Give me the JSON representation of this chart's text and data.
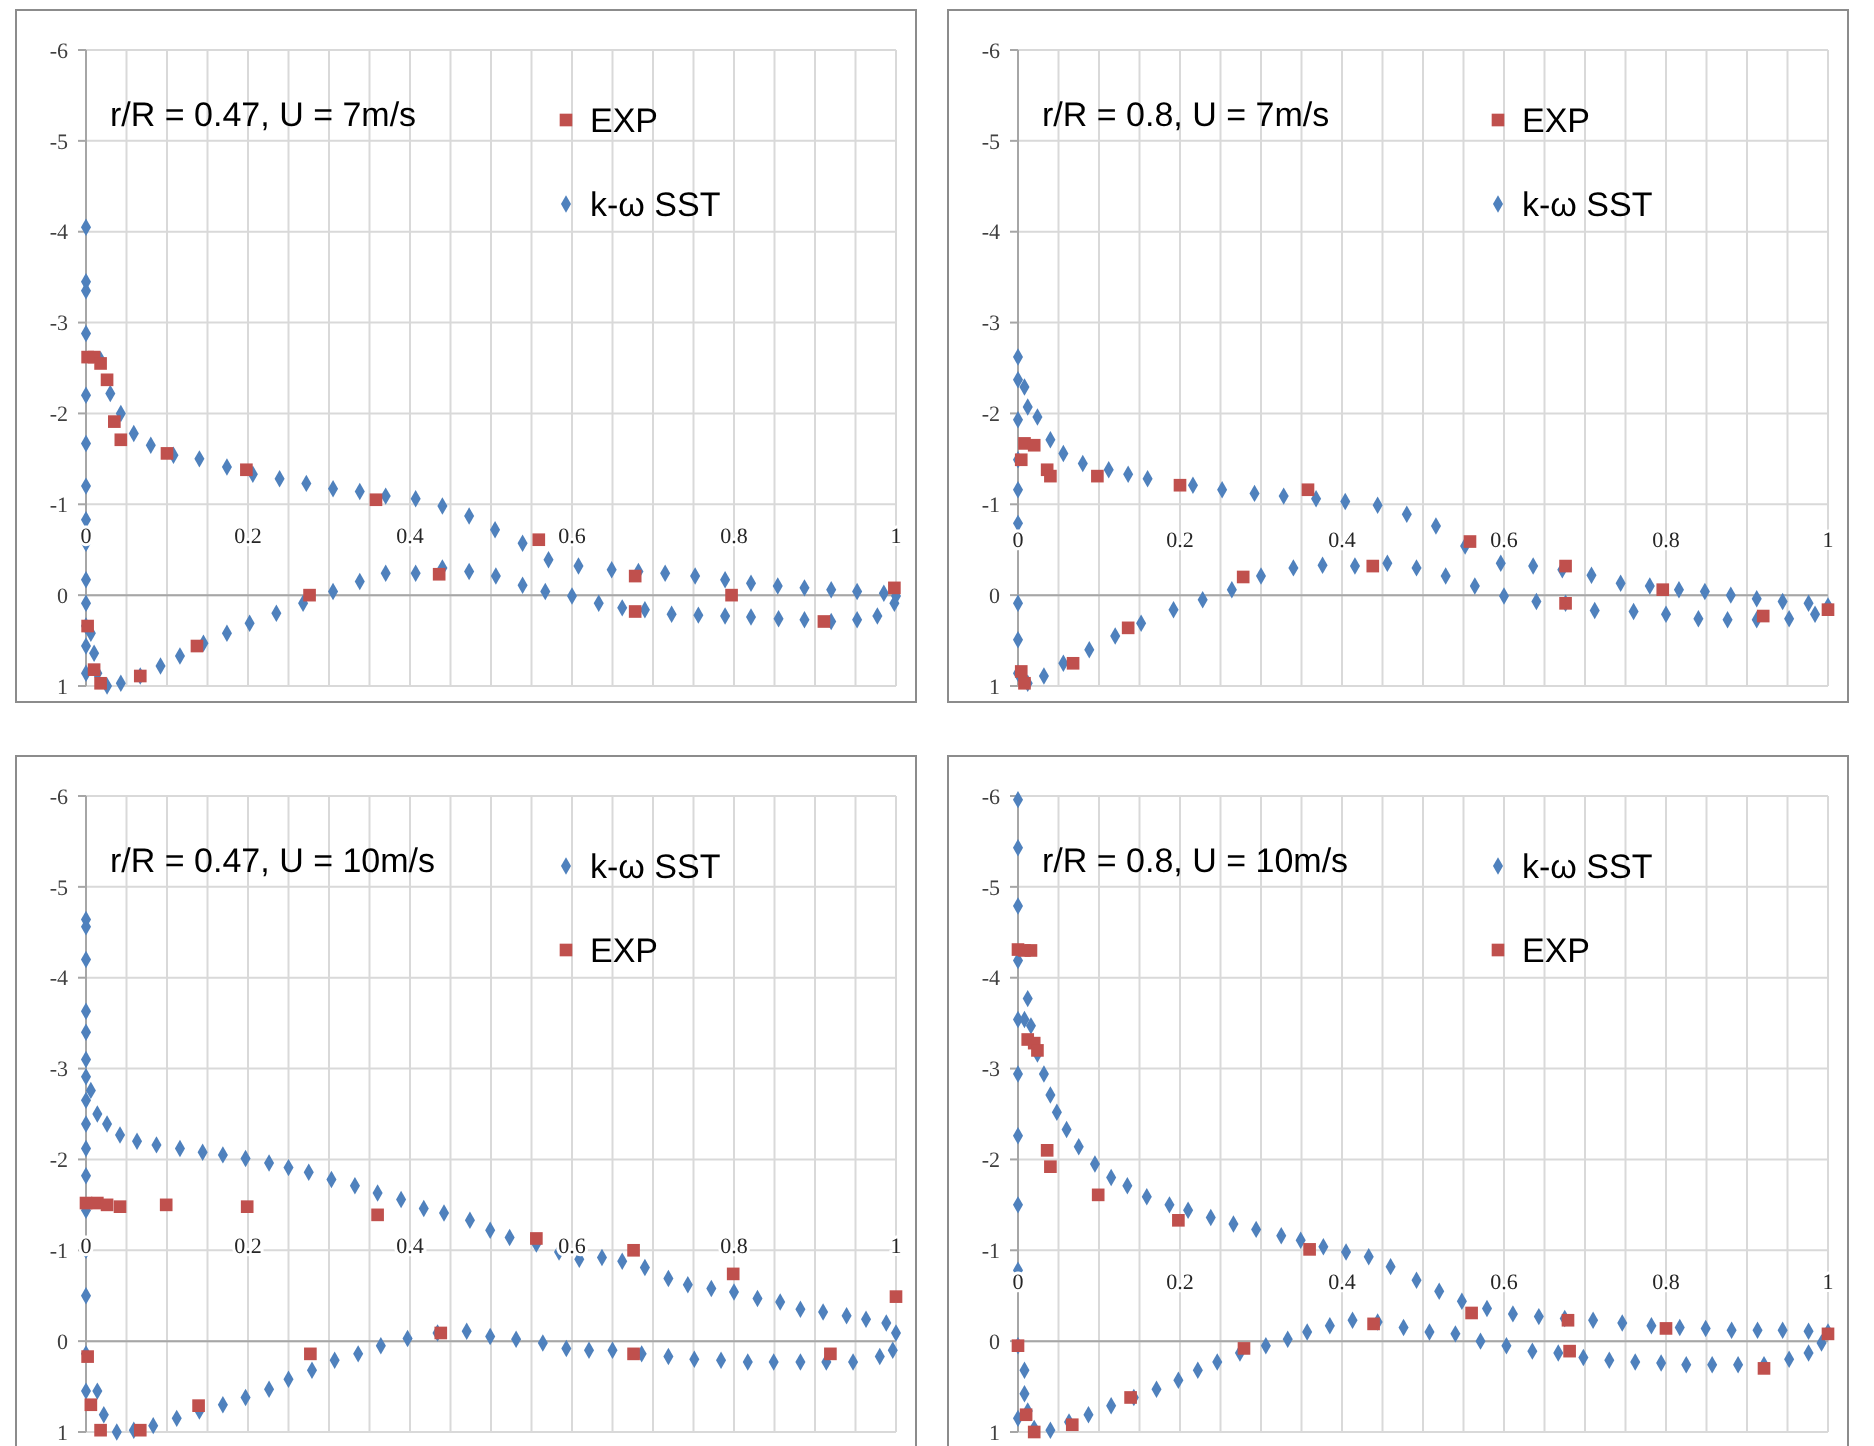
{
  "chart_data": [
    {
      "type": "scatter",
      "title": "r/R = 0.47, U = 7m/s",
      "xlim": [
        0,
        1
      ],
      "ylim": [
        1,
        -6
      ],
      "xticks": [
        0,
        {
          "value": 0.05,
          "label": null
        },
        {
          "value": 0.1,
          "label": null
        },
        {
          "value": 0.15,
          "label": null
        },
        0.2,
        {
          "value": 0.25,
          "label": null
        },
        {
          "value": 0.3,
          "label": null
        },
        {
          "value": 0.35,
          "label": null
        },
        0.4,
        {
          "value": 0.45,
          "label": null
        },
        {
          "value": 0.5,
          "label": null
        },
        {
          "value": 0.55,
          "label": null
        },
        0.6,
        {
          "value": 0.65,
          "label": null
        },
        {
          "value": 0.7,
          "label": null
        },
        {
          "value": 0.75,
          "label": null
        },
        0.8,
        {
          "value": 0.85,
          "label": null
        },
        {
          "value": 0.9,
          "label": null
        },
        {
          "value": 0.95,
          "label": null
        },
        1
      ],
      "yticks": [
        1,
        0,
        -1,
        -2,
        -3,
        -4,
        -5,
        -6
      ],
      "grid": true,
      "legend": "top right",
      "series": [
        {
          "name": "EXP",
          "color": "#c0504d",
          "marker": "square",
          "x": [
            0.002,
            0.01,
            0.018,
            0.026,
            0.035,
            0.043,
            0.1,
            0.198,
            0.358,
            0.559,
            0.678,
            0.797,
            0.998,
            0.911,
            0.678,
            0.436,
            0.276,
            0.137,
            0.067,
            0.018,
            0.01,
            0.002
          ],
          "values": [
            -2.62,
            -2.62,
            -2.55,
            -2.37,
            -1.91,
            -1.71,
            -1.56,
            -1.38,
            -1.05,
            -0.61,
            -0.21,
            0,
            -0.08,
            0.29,
            0.18,
            -0.23,
            0,
            0.56,
            0.89,
            0.97,
            0.82,
            0.34
          ]
        },
        {
          "name": "k-ω SST",
          "color": "#4f81bd",
          "marker": "diamond",
          "x": [
            0,
            0,
            0,
            0,
            0,
            0,
            0,
            0,
            0,
            0,
            0,
            0,
            0,
            0,
            0.018,
            0.03,
            0.043,
            0.059,
            0.08,
            0.108,
            0.14,
            0.174,
            0.206,
            0.239,
            0.272,
            0.305,
            0.338,
            0.37,
            0.407,
            0.44,
            0.473,
            0.505,
            0.539,
            0.571,
            0.608,
            0.649,
            0.682,
            0.715,
            0.752,
            0.789,
            0.821,
            0.854,
            0.887,
            0.92,
            0.952,
            0.985,
            1,
            0.998,
            0.977,
            0.952,
            0.92,
            0.887,
            0.855,
            0.821,
            0.789,
            0.756,
            0.723,
            0.69,
            0.662,
            0.633,
            0.6,
            0.567,
            0.539,
            0.506,
            0.473,
            0.44,
            0.407,
            0.37,
            0.338,
            0.305,
            0.268,
            0.235,
            0.202,
            0.174,
            0.145,
            0.116,
            0.092,
            0.067,
            0.043,
            0.026,
            0.014,
            0.01,
            0.006
          ],
          "values": [
            -4.05,
            -3.45,
            -3.35,
            -2.88,
            -2.2,
            -1.67,
            -1.2,
            -0.83,
            -0.57,
            -0.17,
            0.09,
            0.34,
            0.56,
            0.86,
            -2.59,
            -2.22,
            -2,
            -1.78,
            -1.65,
            -1.54,
            -1.5,
            -1.41,
            -1.33,
            -1.28,
            -1.23,
            -1.17,
            -1.14,
            -1.09,
            -1.06,
            -0.98,
            -0.87,
            -0.72,
            -0.57,
            -0.39,
            -0.32,
            -0.28,
            -0.26,
            -0.24,
            -0.21,
            -0.17,
            -0.13,
            -0.1,
            -0.08,
            -0.06,
            -0.04,
            -0.02,
            0.01,
            0.09,
            0.23,
            0.27,
            0.29,
            0.27,
            0.26,
            0.24,
            0.23,
            0.22,
            0.21,
            0.16,
            0.14,
            0.09,
            0.01,
            -0.04,
            -0.11,
            -0.21,
            -0.26,
            -0.3,
            -0.24,
            -0.24,
            -0.15,
            -0.04,
            0.09,
            0.2,
            0.31,
            0.42,
            0.53,
            0.67,
            0.78,
            0.89,
            0.97,
            1,
            0.86,
            0.64,
            0.42
          ]
        }
      ]
    },
    {
      "type": "scatter",
      "title": "r/R = 0.8, U = 7m/s",
      "xlim": [
        0,
        1
      ],
      "ylim": [
        1,
        -6
      ],
      "xticks": [
        0,
        {
          "value": 0.05,
          "label": null
        },
        {
          "value": 0.1,
          "label": null
        },
        {
          "value": 0.15,
          "label": null
        },
        0.2,
        {
          "value": 0.25,
          "label": null
        },
        {
          "value": 0.3,
          "label": null
        },
        {
          "value": 0.35,
          "label": null
        },
        0.4,
        {
          "value": 0.45,
          "label": null
        },
        {
          "value": 0.5,
          "label": null
        },
        {
          "value": 0.55,
          "label": null
        },
        0.6,
        {
          "value": 0.65,
          "label": null
        },
        {
          "value": 0.7,
          "label": null
        },
        {
          "value": 0.75,
          "label": null
        },
        0.8,
        {
          "value": 0.85,
          "label": null
        },
        {
          "value": 0.9,
          "label": null
        },
        {
          "value": 0.95,
          "label": null
        },
        1
      ],
      "yticks": [
        1,
        0,
        -1,
        -2,
        -3,
        -4,
        -5,
        -6
      ],
      "grid": true,
      "legend": "top right",
      "series": [
        {
          "name": "EXP",
          "color": "#c0504d",
          "marker": "square",
          "x": [
            0.004,
            0.008,
            0.02,
            0.036,
            0.04,
            0.098,
            0.2,
            0.358,
            0.558,
            0.676,
            0.796,
            1,
            0.92,
            0.676,
            0.438,
            0.278,
            0.136,
            0.068,
            0.008,
            0.004
          ],
          "values": [
            -1.49,
            -1.67,
            -1.65,
            -1.38,
            -1.31,
            -1.31,
            -1.21,
            -1.16,
            -0.59,
            -0.32,
            -0.06,
            0.16,
            0.23,
            0.09,
            -0.32,
            -0.2,
            0.36,
            0.75,
            0.97,
            0.84
          ]
        },
        {
          "name": "k-ω SST",
          "color": "#4f81bd",
          "marker": "diamond",
          "x": [
            0,
            0,
            0,
            0,
            0,
            0,
            0,
            0,
            0,
            0.008,
            0.012,
            0.024,
            0.04,
            0.056,
            0.08,
            0.112,
            0.136,
            0.16,
            0.216,
            0.252,
            0.292,
            0.328,
            0.368,
            0.404,
            0.444,
            0.48,
            0.516,
            0.552,
            0.596,
            0.636,
            0.672,
            0.708,
            0.744,
            0.78,
            0.816,
            0.848,
            0.88,
            0.912,
            0.944,
            0.976,
            1,
            0.984,
            0.952,
            0.912,
            0.876,
            0.84,
            0.8,
            0.76,
            0.712,
            0.676,
            0.64,
            0.6,
            0.564,
            0.528,
            0.492,
            0.456,
            0.416,
            0.376,
            0.34,
            0.3,
            0.264,
            0.228,
            0.192,
            0.152,
            0.12,
            0.088,
            0.056,
            0.032,
            0.012
          ],
          "values": [
            -2.62,
            -2.37,
            -1.93,
            -1.49,
            -1.16,
            -0.79,
            0.09,
            0.49,
            0.86,
            -2.29,
            -2.07,
            -1.96,
            -1.71,
            -1.56,
            -1.45,
            -1.38,
            -1.33,
            -1.28,
            -1.21,
            -1.16,
            -1.12,
            -1.09,
            -1.06,
            -1.03,
            -0.99,
            -0.89,
            -0.76,
            -0.54,
            -0.35,
            -0.32,
            -0.28,
            -0.22,
            -0.13,
            -0.1,
            -0.06,
            -0.04,
            0,
            0.04,
            0.07,
            0.09,
            0.12,
            0.21,
            0.26,
            0.27,
            0.27,
            0.26,
            0.21,
            0.18,
            0.17,
            0.09,
            0.07,
            0.01,
            -0.1,
            -0.21,
            -0.3,
            -0.35,
            -0.32,
            -0.33,
            -0.3,
            -0.21,
            -0.06,
            0.05,
            0.16,
            0.31,
            0.45,
            0.6,
            0.75,
            0.89,
            0.97
          ]
        }
      ]
    },
    {
      "type": "scatter",
      "title": "r/R = 0.47, U = 10m/s",
      "xlim": [
        0,
        1
      ],
      "ylim": [
        1,
        -6
      ],
      "xticks": [
        0,
        {
          "value": 0.05,
          "label": null
        },
        {
          "value": 0.1,
          "label": null
        },
        {
          "value": 0.15,
          "label": null
        },
        0.2,
        {
          "value": 0.25,
          "label": null
        },
        {
          "value": 0.3,
          "label": null
        },
        {
          "value": 0.35,
          "label": null
        },
        0.4,
        {
          "value": 0.45,
          "label": null
        },
        {
          "value": 0.5,
          "label": null
        },
        {
          "value": 0.55,
          "label": null
        },
        0.6,
        {
          "value": 0.65,
          "label": null
        },
        {
          "value": 0.7,
          "label": null
        },
        {
          "value": 0.75,
          "label": null
        },
        0.8,
        {
          "value": 0.85,
          "label": null
        },
        {
          "value": 0.9,
          "label": null
        },
        {
          "value": 0.95,
          "label": null
        },
        1
      ],
      "yticks": [
        1,
        0,
        -1,
        -2,
        -3,
        -4,
        -5,
        -6
      ],
      "grid": true,
      "legend": "top right",
      "series": [
        {
          "name": "k-ω SST",
          "color": "#4f81bd",
          "marker": "diamond",
          "x": [
            0,
            0,
            0,
            0,
            0,
            0,
            0,
            0,
            0,
            0,
            0,
            0,
            0,
            0,
            0,
            0,
            0.006,
            0.014,
            0.026,
            0.042,
            0.063,
            0.087,
            0.116,
            0.144,
            0.169,
            0.197,
            0.226,
            0.25,
            0.275,
            0.303,
            0.332,
            0.36,
            0.389,
            0.417,
            0.442,
            0.474,
            0.499,
            0.523,
            0.556,
            0.584,
            0.609,
            0.637,
            0.662,
            0.69,
            0.719,
            0.743,
            0.772,
            0.8,
            0.829,
            0.857,
            0.882,
            0.91,
            0.939,
            0.963,
            0.988,
            1,
            0.996,
            0.98,
            0.947,
            0.914,
            0.882,
            0.849,
            0.817,
            0.784,
            0.751,
            0.719,
            0.686,
            0.65,
            0.621,
            0.593,
            0.564,
            0.531,
            0.499,
            0.47,
            0.434,
            0.397,
            0.364,
            0.336,
            0.307,
            0.279,
            0.25,
            0.226,
            0.197,
            0.169,
            0.14,
            0.112,
            0.083,
            0.059,
            0.038,
            0.022,
            0.014
          ],
          "values": [
            -4.64,
            -4.56,
            -4.2,
            -3.63,
            -3.4,
            -3.1,
            -2.91,
            -2.65,
            -2.39,
            -2.12,
            -1.82,
            -1.44,
            -1,
            -0.5,
            0.14,
            0.55,
            -2.76,
            -2.5,
            -2.39,
            -2.27,
            -2.2,
            -2.16,
            -2.12,
            -2.08,
            -2.05,
            -2.01,
            -1.96,
            -1.91,
            -1.86,
            -1.78,
            -1.71,
            -1.63,
            -1.56,
            -1.46,
            -1.41,
            -1.33,
            -1.22,
            -1.14,
            -1.07,
            -0.98,
            -0.9,
            -0.92,
            -0.88,
            -0.81,
            -0.69,
            -0.62,
            -0.58,
            -0.54,
            -0.47,
            -0.43,
            -0.35,
            -0.32,
            -0.28,
            -0.24,
            -0.2,
            -0.09,
            0.1,
            0.17,
            0.23,
            0.23,
            0.23,
            0.23,
            0.23,
            0.21,
            0.2,
            0.17,
            0.14,
            0.1,
            0.1,
            0.08,
            0.02,
            -0.02,
            -0.05,
            -0.11,
            -0.09,
            -0.03,
            0.05,
            0.14,
            0.21,
            0.32,
            0.42,
            0.53,
            0.62,
            0.7,
            0.77,
            0.85,
            0.93,
            0.98,
            1,
            0.81,
            0.55
          ]
        },
        {
          "name": "EXP",
          "color": "#c0504d",
          "marker": "square",
          "x": [
            0,
            0.014,
            0.026,
            0.042,
            0.099,
            0.199,
            0.36,
            0.556,
            0.676,
            0.799,
            1,
            0.919,
            0.676,
            0.438,
            0.277,
            0.139,
            0.067,
            0.018,
            0.006,
            0.002
          ],
          "values": [
            -1.52,
            -1.52,
            -1.5,
            -1.48,
            -1.5,
            -1.48,
            -1.39,
            -1.13,
            -1,
            -0.74,
            -0.49,
            0.14,
            0.14,
            -0.09,
            0.14,
            0.71,
            0.98,
            0.98,
            0.7,
            0.17
          ]
        }
      ]
    },
    {
      "type": "scatter",
      "title": "r/R = 0.8, U = 10m/s",
      "xlim": [
        0,
        1
      ],
      "ylim": [
        1,
        -6
      ],
      "xticks": [
        0,
        {
          "value": 0.05,
          "label": null
        },
        {
          "value": 0.1,
          "label": null
        },
        {
          "value": 0.15,
          "label": null
        },
        0.2,
        {
          "value": 0.25,
          "label": null
        },
        {
          "value": 0.3,
          "label": null
        },
        {
          "value": 0.35,
          "label": null
        },
        0.4,
        {
          "value": 0.45,
          "label": null
        },
        {
          "value": 0.5,
          "label": null
        },
        {
          "value": 0.55,
          "label": null
        },
        0.6,
        {
          "value": 0.65,
          "label": null
        },
        {
          "value": 0.7,
          "label": null
        },
        {
          "value": 0.75,
          "label": null
        },
        0.8,
        {
          "value": 0.85,
          "label": null
        },
        {
          "value": 0.9,
          "label": null
        },
        {
          "value": 0.95,
          "label": null
        },
        1
      ],
      "yticks": [
        1,
        0,
        -1,
        -2,
        -3,
        -4,
        -5,
        -6
      ],
      "grid": true,
      "legend": "top right",
      "series": [
        {
          "name": "k-ω SST",
          "color": "#4f81bd",
          "marker": "diamond",
          "x": [
            0,
            0,
            0,
            0,
            0,
            0,
            0,
            0,
            0,
            0,
            0,
            0.008,
            0.012,
            0.016,
            0.024,
            0.032,
            0.04,
            0.048,
            0.06,
            0.075,
            0.095,
            0.115,
            0.135,
            0.159,
            0.187,
            0.21,
            0.238,
            0.266,
            0.294,
            0.325,
            0.349,
            0.377,
            0.405,
            0.433,
            0.46,
            0.492,
            0.52,
            0.548,
            0.579,
            0.611,
            0.643,
            0.675,
            0.71,
            0.746,
            0.782,
            0.817,
            0.849,
            0.881,
            0.913,
            0.944,
            0.976,
            1,
            0.992,
            0.976,
            0.952,
            0.921,
            0.889,
            0.857,
            0.825,
            0.794,
            0.762,
            0.73,
            0.698,
            0.667,
            0.635,
            0.603,
            0.571,
            0.54,
            0.508,
            0.476,
            0.444,
            0.413,
            0.385,
            0.357,
            0.333,
            0.306,
            0.274,
            0.246,
            0.222,
            0.198,
            0.171,
            0.143,
            0.115,
            0.087,
            0.063,
            0.04,
            0.02,
            0.012,
            0.008,
            0.008
          ],
          "values": [
            -5.96,
            -5.43,
            -4.79,
            -4.19,
            -3.54,
            -2.94,
            -2.26,
            -1.5,
            -0.78,
            0.05,
            0.85,
            -3.54,
            -3.77,
            -3.47,
            -3.16,
            -2.94,
            -2.71,
            -2.52,
            -2.33,
            -2.14,
            -1.95,
            -1.8,
            -1.71,
            -1.59,
            -1.5,
            -1.44,
            -1.36,
            -1.29,
            -1.23,
            -1.16,
            -1.11,
            -1.04,
            -0.98,
            -0.93,
            -0.82,
            -0.67,
            -0.55,
            -0.44,
            -0.36,
            -0.3,
            -0.27,
            -0.25,
            -0.23,
            -0.2,
            -0.17,
            -0.15,
            -0.14,
            -0.12,
            -0.12,
            -0.12,
            -0.11,
            -0.1,
            0.02,
            0.13,
            0.2,
            0.26,
            0.26,
            0.26,
            0.26,
            0.24,
            0.23,
            0.21,
            0.18,
            0.13,
            0.11,
            0.05,
            0,
            -0.08,
            -0.1,
            -0.15,
            -0.21,
            -0.23,
            -0.17,
            -0.1,
            -0.02,
            0.05,
            0.13,
            0.23,
            0.32,
            0.43,
            0.53,
            0.62,
            0.71,
            0.81,
            0.89,
            0.98,
            0.96,
            0.77,
            0.58,
            0.32
          ]
        },
        {
          "name": "EXP",
          "color": "#c0504d",
          "marker": "square",
          "x": [
            0,
            0.008,
            0.016,
            0.012,
            0.02,
            0.024,
            0.036,
            0.04,
            0.099,
            0.198,
            0.36,
            0.56,
            0.679,
            0.8,
            1,
            0.921,
            0.681,
            0.439,
            0.279,
            0.139,
            0.067,
            0.02,
            0.01,
            0
          ],
          "values": [
            -4.31,
            -4.3,
            -4.3,
            -3.32,
            -3.28,
            -3.2,
            -2.1,
            -1.92,
            -1.61,
            -1.33,
            -1.01,
            -0.31,
            -0.23,
            -0.14,
            -0.08,
            0.3,
            0.11,
            -0.19,
            0.08,
            0.62,
            0.92,
            1,
            0.81,
            0.05
          ]
        }
      ]
    }
  ]
}
